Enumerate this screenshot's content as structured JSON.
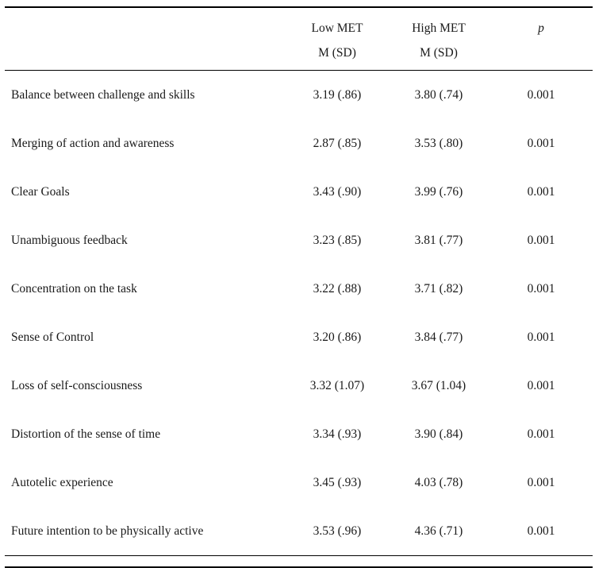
{
  "table": {
    "columns": {
      "low_met_label": "Low MET",
      "high_met_label": "High MET",
      "p_label": "p",
      "low_met_sub": "M (SD)",
      "high_met_sub": "M (SD)"
    },
    "rows": [
      {
        "label": "Balance between challenge and skills",
        "low": "3.19 (.86)",
        "high": "3.80 (.74)",
        "p": "0.001"
      },
      {
        "label": "Merging of action and awareness",
        "low": "2.87 (.85)",
        "high": "3.53 (.80)",
        "p": "0.001"
      },
      {
        "label": "Clear Goals",
        "low": "3.43 (.90)",
        "high": "3.99 (.76)",
        "p": "0.001"
      },
      {
        "label": "Unambiguous feedback",
        "low": "3.23 (.85)",
        "high": "3.81 (.77)",
        "p": "0.001"
      },
      {
        "label": "Concentration on the task",
        "low": "3.22 (.88)",
        "high": "3.71 (.82)",
        "p": "0.001"
      },
      {
        "label": "Sense of Control",
        "low": "3.20 (.86)",
        "high": "3.84 (.77)",
        "p": "0.001"
      },
      {
        "label": "Loss of self-consciousness",
        "low": "3.32 (1.07)",
        "high": "3.67 (1.04)",
        "p": "0.001"
      },
      {
        "label": "Distortion of the sense of time",
        "low": "3.34 (.93)",
        "high": "3.90 (.84)",
        "p": "0.001"
      },
      {
        "label": "Autotelic experience",
        "low": "3.45 (.93)",
        "high": "4.03 (.78)",
        "p": "0.001"
      },
      {
        "label": "Future intention to be physically active",
        "low": "3.53 (.96)",
        "high": "4.36 (.71)",
        "p": "0.001"
      }
    ]
  },
  "chart_data": {
    "type": "table",
    "title": "",
    "columns": [
      "",
      "Low MET M (SD)",
      "High MET M (SD)",
      "p"
    ],
    "rows": [
      [
        "Balance between challenge and skills",
        "3.19 (.86)",
        "3.80 (.74)",
        "0.001"
      ],
      [
        "Merging of action and awareness",
        "2.87 (.85)",
        "3.53 (.80)",
        "0.001"
      ],
      [
        "Clear Goals",
        "3.43 (.90)",
        "3.99 (.76)",
        "0.001"
      ],
      [
        "Unambiguous feedback",
        "3.23 (.85)",
        "3.81 (.77)",
        "0.001"
      ],
      [
        "Concentration on the task",
        "3.22 (.88)",
        "3.71 (.82)",
        "0.001"
      ],
      [
        "Sense of Control",
        "3.20 (.86)",
        "3.84 (.77)",
        "0.001"
      ],
      [
        "Loss of self-consciousness",
        "3.32 (1.07)",
        "3.67 (1.04)",
        "0.001"
      ],
      [
        "Distortion of the sense of time",
        "3.34 (.93)",
        "3.90 (.84)",
        "0.001"
      ],
      [
        "Autotelic experience",
        "3.45 (.93)",
        "4.03 (.78)",
        "0.001"
      ],
      [
        "Future intention to be physically active",
        "3.53 (.96)",
        "4.36 (.71)",
        "0.001"
      ]
    ]
  }
}
